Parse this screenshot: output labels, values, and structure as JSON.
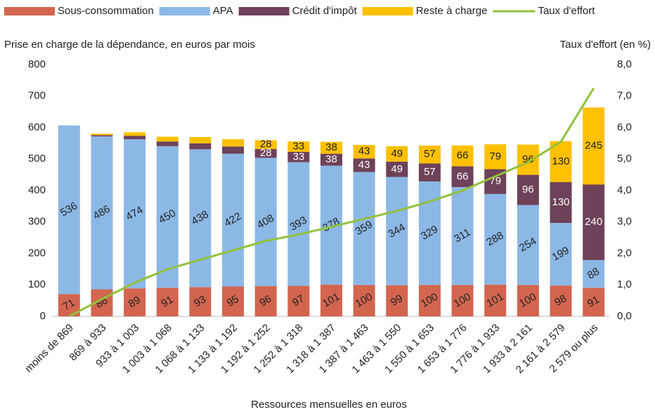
{
  "chart_data": {
    "type": "stacked-bar-line",
    "y_label": "Prise en charge de la dépendance, en euros par mois",
    "y2_label": "Taux d'effort (en %)",
    "x_label": "Ressources mensuelles en euros",
    "categories": [
      "moins de 869",
      "869 à 933",
      "933 à 1 003",
      "1 003 à 1 068",
      "1 068 à 1 133",
      "1 133 à 1 192",
      "1 192 à 1 252",
      "1 252 à 1 318",
      "1 318 à 1 387",
      "1 387 à 1 463",
      "1 463 à 1 550",
      "1 550 à 1 653",
      "1 653 à 1 776",
      "1 776 à 1 933",
      "1 933 à 2 161",
      "2 161 à 2 579",
      "2 579 ou plus"
    ],
    "series": [
      {
        "name": "Sous-consommation",
        "color": "#d3654f",
        "values": [
          71,
          86,
          89,
          91,
          93,
          95,
          96,
          97,
          101,
          100,
          99,
          100,
          100,
          101,
          100,
          98,
          91
        ]
      },
      {
        "name": "APA",
        "color": "#8cb8e6",
        "values": [
          536,
          486,
          474,
          450,
          438,
          422,
          408,
          393,
          378,
          359,
          344,
          329,
          311,
          288,
          254,
          199,
          88
        ]
      },
      {
        "name": "Crédit d'impôt",
        "color": "#6e4258",
        "values": [
          0,
          4,
          11,
          15,
          19,
          23,
          28,
          33,
          38,
          43,
          49,
          57,
          66,
          79,
          96,
          130,
          240
        ]
      },
      {
        "name": "Reste à charge",
        "color": "#ffc000",
        "values": [
          0,
          5,
          11,
          15,
          20,
          23,
          28,
          33,
          38,
          43,
          49,
          57,
          66,
          79,
          96,
          130,
          245
        ]
      },
      {
        "name": "Taux d'effort",
        "color": "#92c13a",
        "axis": "y2",
        "values": [
          0.0,
          0.55,
          1.07,
          1.5,
          1.8,
          2.1,
          2.4,
          2.6,
          2.85,
          3.1,
          3.35,
          3.65,
          4.0,
          4.45,
          4.9,
          5.55,
          7.25
        ]
      }
    ],
    "ylim": [
      0,
      800
    ],
    "yticks": [
      0,
      100,
      200,
      300,
      400,
      500,
      600,
      700,
      800
    ],
    "y2lim": [
      0,
      8
    ],
    "y2ticks": [
      {
        "value": 0,
        "label": "0,0"
      },
      {
        "value": 1,
        "label": "1,0"
      },
      {
        "value": 2,
        "label": "2,0"
      },
      {
        "value": 3,
        "label": "3,0"
      },
      {
        "value": 4,
        "label": "4,0"
      },
      {
        "value": 5,
        "label": "5,0"
      },
      {
        "value": 6,
        "label": "6,0"
      },
      {
        "value": 7,
        "label": "7,0"
      },
      {
        "value": 8,
        "label": "8,0"
      }
    ],
    "grid": false
  }
}
